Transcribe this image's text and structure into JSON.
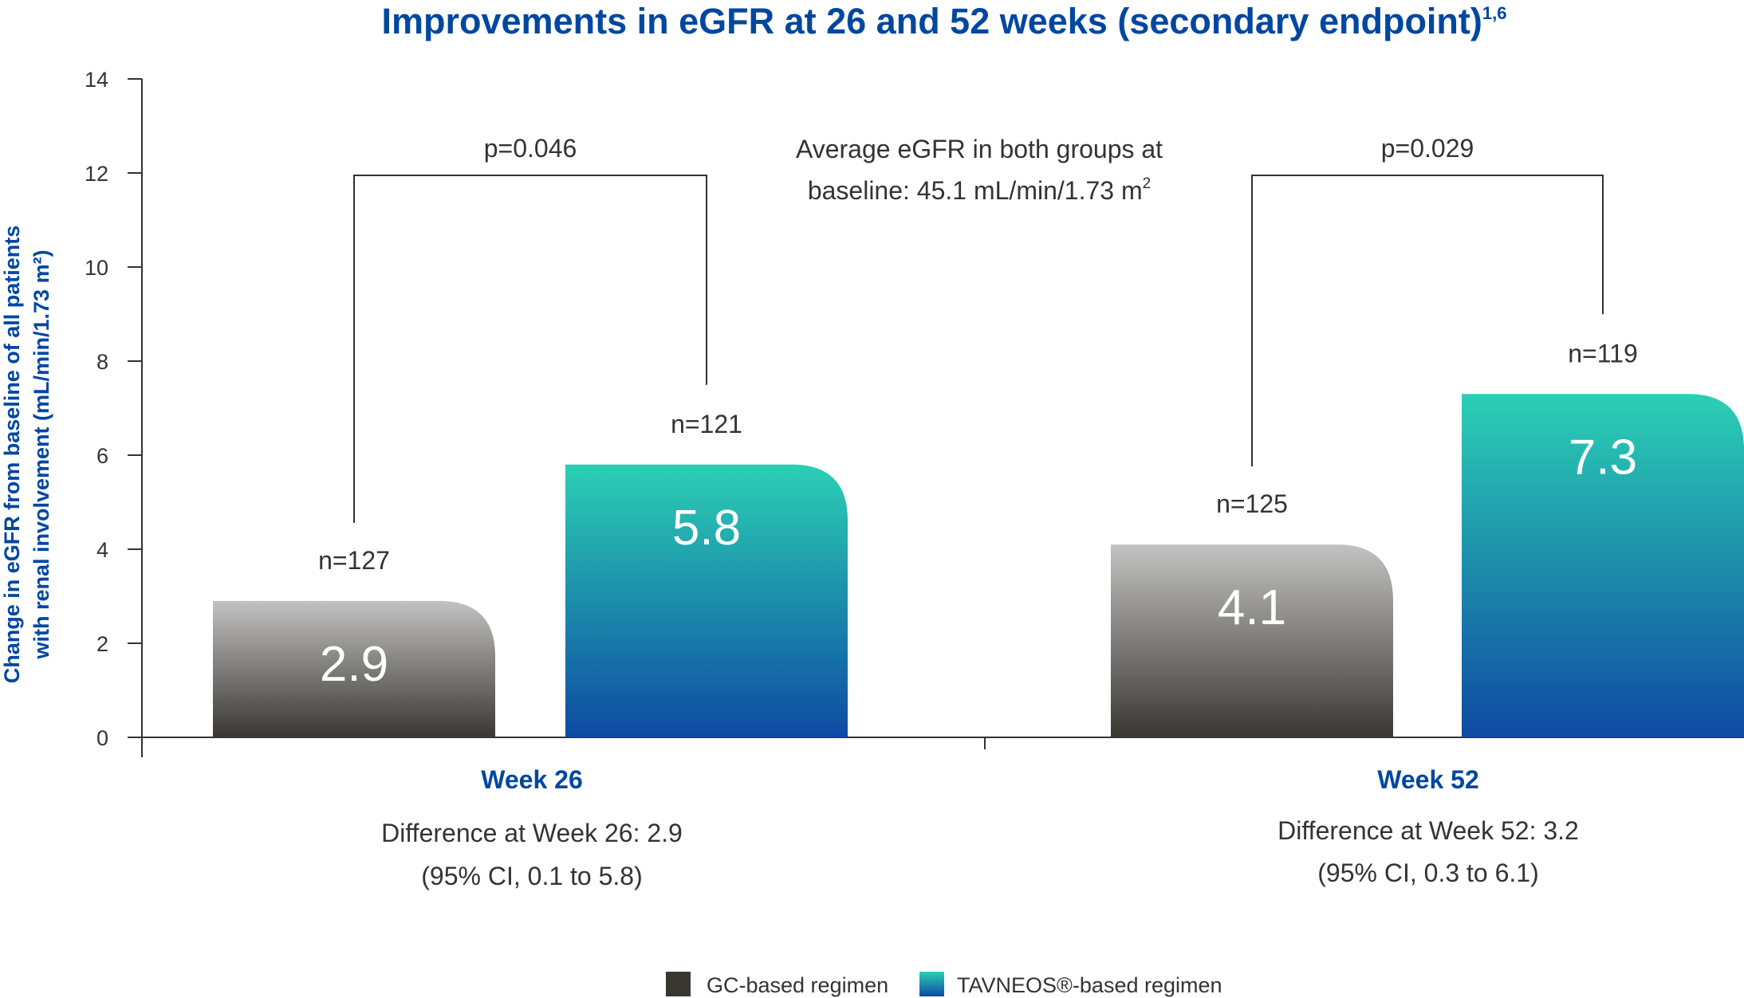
{
  "chart_data": {
    "type": "bar",
    "title": "Improvements in eGFR at 26 and 52 weeks (secondary endpoint)",
    "title_superscript": "1,6",
    "ylabel_line1": "Change in eGFR from baseline of all patients",
    "ylabel_line2": "with renal involvement (mL/min/1.73 m²)",
    "ylim": [
      0,
      14
    ],
    "yticks": [
      "0",
      "2",
      "4",
      "6",
      "8",
      "10",
      "12",
      "14"
    ],
    "categories": [
      "Week 26",
      "Week 52"
    ],
    "series": [
      {
        "name": "GC-based regimen",
        "values": [
          2.9,
          4.1
        ],
        "value_labels": [
          "2.9",
          "4.1"
        ],
        "n_labels": [
          "n=127",
          "n=125"
        ]
      },
      {
        "name": "TAVNEOS®-based regimen",
        "values": [
          5.8,
          7.3
        ],
        "value_labels": [
          "5.8",
          "7.3"
        ],
        "n_labels": [
          "n=121",
          "n=119"
        ]
      }
    ],
    "p_values": [
      "p=0.046",
      "p=0.029"
    ],
    "annotation_line1": "Average eGFR in both groups at",
    "annotation_line2": "baseline: 45.1 mL/min/1.73 m",
    "annotation_superscript": "2",
    "differences": [
      {
        "line1": "Difference at Week 26: 2.9",
        "line2": "(95% CI, 0.1 to 5.8)"
      },
      {
        "line1": "Difference at Week 52: 3.2",
        "line2": "(95% CI, 0.3 to 6.1)"
      }
    ],
    "legend_position": "bottom-right",
    "grid": false
  },
  "colors": {
    "accent": "#0047a0",
    "gc_top": "#c2c2c2",
    "gc_bottom": "#3a3733",
    "tav_top": "#2bd0b4",
    "tav_bottom": "#0e4aa3",
    "axis": "#333333",
    "bracket": "#333333"
  }
}
